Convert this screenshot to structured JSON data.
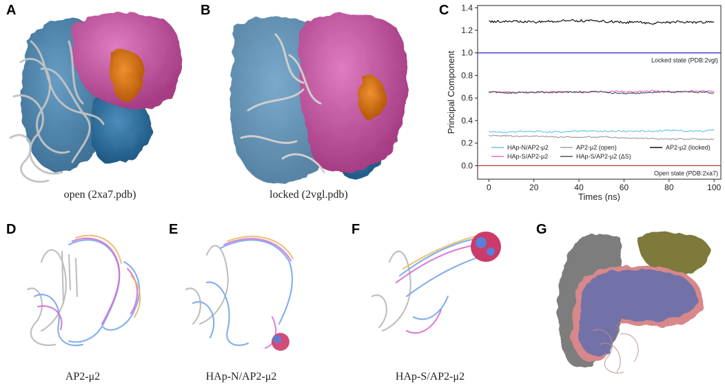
{
  "panels": {
    "A": {
      "letter": "A",
      "caption": "open (2xa7.pdb)"
    },
    "B": {
      "letter": "B",
      "caption": "locked  (2vgl.pdb)"
    },
    "C": {
      "letter": "C"
    },
    "D": {
      "letter": "D",
      "caption": "AP2-μ2"
    },
    "E": {
      "letter": "E",
      "caption": "HAp-N/AP2-μ2"
    },
    "F": {
      "letter": "F",
      "caption": "HAp-S/AP2-μ2"
    },
    "G": {
      "letter": "G"
    }
  },
  "colors": {
    "blue_domain": "#2f6f9e",
    "magenta_domain": "#c14f9a",
    "orange_patch": "#d46f14",
    "gray_ribbon": "#c9c9c9",
    "olive": "#7d7a3a",
    "lavender": "#7372a8",
    "salmon": "#d8888a"
  },
  "chart_data": {
    "type": "line",
    "xlabel": "Times (ns)",
    "ylabel": "Principal Component",
    "xlim": [
      -5,
      103
    ],
    "ylim": [
      -0.12,
      1.42
    ],
    "xticks": [
      0,
      20,
      40,
      60,
      80,
      100
    ],
    "yticks": [
      0.0,
      0.2,
      0.4,
      0.6,
      0.8,
      1.0,
      1.2,
      1.4
    ],
    "xtick_labels": [
      "0",
      "20",
      "40",
      "60",
      "80",
      "100"
    ],
    "ytick_labels": [
      "0.0",
      "0.2",
      "0.4",
      "0.6",
      "0.8",
      "1.0",
      "1.2",
      "1.4"
    ],
    "reference_lines": [
      {
        "y": 1.0,
        "label": "Locked state (PDB:2vgl)",
        "color": "#2222cc"
      },
      {
        "y": 0.0,
        "label": "Open state (PDB:2xa7)",
        "color": "#b23a3a"
      }
    ],
    "series": [
      {
        "name": "HAp-N/AP2-μ2",
        "color": "#6ec6e8",
        "base": 0.3,
        "trend": 0.015,
        "noise": 0.012
      },
      {
        "name": "AP2-μ2 (open)",
        "color": "#a0a0a0",
        "base": 0.27,
        "trend": -0.04,
        "noise": 0.012
      },
      {
        "name": "AP2-μ2 (locked)",
        "color": "#111111",
        "base": 1.28,
        "trend": -0.01,
        "noise": 0.02
      },
      {
        "name": "HAp-S/AP2-μ2",
        "color": "#e070d0",
        "base": 0.655,
        "trend": 0.0,
        "noise": 0.012
      },
      {
        "name": "HAp-S/AP2-μ2 (ΔS)",
        "color": "#555555",
        "base": 0.65,
        "trend": 0.0,
        "noise": 0.012
      }
    ],
    "legend_order": [
      0,
      1,
      2,
      3,
      4
    ],
    "legend_placement": "lower-center"
  }
}
